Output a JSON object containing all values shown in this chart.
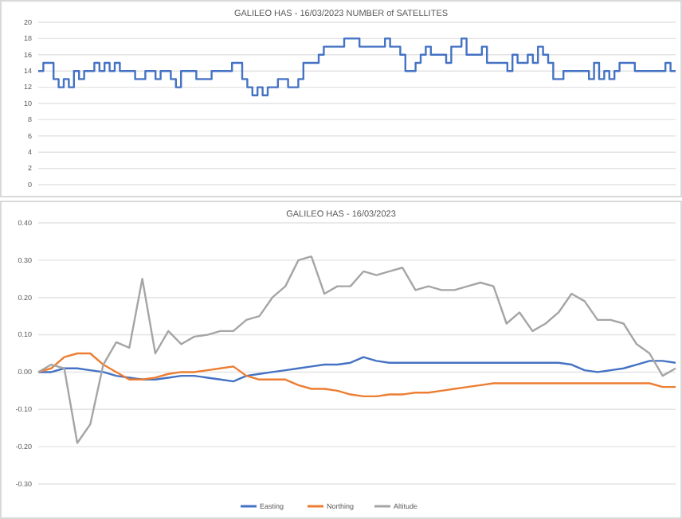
{
  "chart_data": [
    {
      "type": "step",
      "title": "GALILEO HAS - 16/03/2023 NUMBER of SATELLITES",
      "categories": [
        null,
        null,
        null,
        null,
        null,
        null,
        null,
        null,
        null,
        null,
        null,
        null,
        null,
        null,
        null,
        null,
        null,
        null,
        null,
        null,
        null,
        null,
        null,
        null,
        null,
        null,
        null,
        null,
        null,
        null,
        null,
        null,
        null,
        null,
        null,
        null,
        null,
        null,
        null,
        null,
        null,
        null,
        null,
        null,
        null,
        null,
        null,
        null,
        null,
        null,
        null,
        null,
        null,
        null,
        null,
        null,
        null,
        null,
        null,
        null,
        null,
        null,
        null,
        null,
        null,
        null,
        null,
        null,
        null,
        null,
        null,
        null,
        null,
        null,
        null,
        null,
        null,
        null,
        null,
        null,
        null,
        null,
        null,
        null,
        null,
        null,
        null,
        null,
        null,
        null,
        null,
        null,
        null,
        null,
        null,
        null,
        null,
        null,
        null,
        null,
        null,
        null,
        null,
        null,
        null,
        null,
        null,
        null,
        null,
        null,
        null,
        null,
        null,
        null,
        null,
        null,
        null,
        null,
        null,
        null,
        null,
        null,
        null,
        null,
        null,
        null
      ],
      "series": [
        {
          "color": "#4472c4",
          "values": [
            14,
            15,
            15,
            13,
            12,
            13,
            12,
            14,
            13,
            14,
            14,
            15,
            14,
            15,
            14,
            15,
            14,
            14,
            14,
            13,
            13,
            14,
            14,
            13,
            14,
            14,
            13,
            12,
            14,
            14,
            14,
            13,
            13,
            13,
            14,
            14,
            14,
            14,
            15,
            15,
            13,
            12,
            11,
            12,
            11,
            12,
            12,
            13,
            13,
            12,
            12,
            13,
            15,
            15,
            15,
            16,
            17,
            17,
            17,
            17,
            18,
            18,
            18,
            17,
            17,
            17,
            17,
            17,
            18,
            17,
            17,
            16,
            14,
            14,
            15,
            16,
            17,
            16,
            16,
            16,
            15,
            17,
            17,
            18,
            16,
            16,
            16,
            17,
            15,
            15,
            15,
            15,
            14,
            16,
            15,
            15,
            16,
            15,
            17,
            16,
            15,
            13,
            13,
            14,
            14,
            14,
            14,
            14,
            13,
            15,
            13,
            14,
            13,
            14,
            15,
            15,
            15,
            14,
            14,
            14,
            14,
            14,
            14,
            15,
            14,
            14
          ]
        }
      ],
      "ylim": [
        0,
        20
      ],
      "yticks": [
        0,
        2,
        4,
        6,
        8,
        10,
        12,
        14,
        16,
        18,
        20
      ],
      "grid": "y"
    },
    {
      "type": "line",
      "title": "GALILEO HAS - 16/03/2023",
      "categories": [
        null,
        null,
        null,
        null,
        null,
        null,
        null,
        null,
        null,
        null,
        null,
        null,
        null,
        null,
        null,
        null,
        null,
        null,
        null,
        null,
        null,
        null,
        null,
        null,
        null,
        null,
        null,
        null,
        null,
        null,
        null,
        null,
        null,
        null,
        null,
        null,
        null,
        null,
        null,
        null,
        null,
        null,
        null,
        null,
        null,
        null,
        null,
        null,
        null,
        null
      ],
      "series": [
        {
          "name": "Easting",
          "color": "#4472c4",
          "values": [
            0.0,
            0.0,
            0.01,
            0.01,
            0.005,
            0.0,
            -0.01,
            -0.015,
            -0.02,
            -0.02,
            -0.015,
            -0.01,
            -0.01,
            -0.015,
            -0.02,
            -0.025,
            -0.01,
            -0.005,
            0.0,
            0.005,
            0.01,
            0.015,
            0.02,
            0.02,
            0.025,
            0.04,
            0.03,
            0.025,
            0.025,
            0.025,
            0.025,
            0.025,
            0.025,
            0.025,
            0.025,
            0.025,
            0.025,
            0.025,
            0.025,
            0.025,
            0.025,
            0.02,
            0.005,
            0.0,
            0.005,
            0.01,
            0.02,
            0.03,
            0.03,
            0.025
          ]
        },
        {
          "name": "Northing",
          "color": "#ed7d31",
          "values": [
            0.0,
            0.01,
            0.04,
            0.05,
            0.05,
            0.02,
            0.0,
            -0.02,
            -0.02,
            -0.015,
            -0.005,
            0.0,
            0.0,
            0.005,
            0.01,
            0.015,
            -0.01,
            -0.02,
            -0.02,
            -0.02,
            -0.035,
            -0.045,
            -0.045,
            -0.05,
            -0.06,
            -0.065,
            -0.065,
            -0.06,
            -0.06,
            -0.055,
            -0.055,
            -0.05,
            -0.045,
            -0.04,
            -0.035,
            -0.03,
            -0.03,
            -0.03,
            -0.03,
            -0.03,
            -0.03,
            -0.03,
            -0.03,
            -0.03,
            -0.03,
            -0.03,
            -0.03,
            -0.03,
            -0.04,
            -0.04
          ]
        },
        {
          "name": "Altitude",
          "color": "#a5a5a5",
          "values": [
            0.0,
            0.02,
            0.01,
            -0.19,
            -0.14,
            0.02,
            0.08,
            0.065,
            0.25,
            0.05,
            0.11,
            0.075,
            0.095,
            0.1,
            0.11,
            0.11,
            0.14,
            0.15,
            0.2,
            0.23,
            0.3,
            0.31,
            0.21,
            0.23,
            0.23,
            0.27,
            0.26,
            0.27,
            0.28,
            0.22,
            0.23,
            0.22,
            0.22,
            0.23,
            0.24,
            0.23,
            0.13,
            0.16,
            0.11,
            0.13,
            0.16,
            0.21,
            0.19,
            0.14,
            0.14,
            0.13,
            0.075,
            0.05,
            -0.01,
            0.01
          ]
        }
      ],
      "ylim": [
        -0.3,
        0.4
      ],
      "yticks": [
        {
          "value": -0.3,
          "label": "-0.30"
        },
        {
          "value": -0.2,
          "label": "-0.20"
        },
        {
          "value": -0.1,
          "label": "-0.10"
        },
        {
          "value": 0,
          "label": "0.00"
        },
        {
          "value": 0.1,
          "label": "0.10"
        },
        {
          "value": 0.2,
          "label": "0.20"
        },
        {
          "value": 0.3,
          "label": "0.30"
        },
        {
          "value": 0.4,
          "label": "0.40"
        }
      ],
      "grid": "y",
      "legend": "bottom"
    }
  ]
}
